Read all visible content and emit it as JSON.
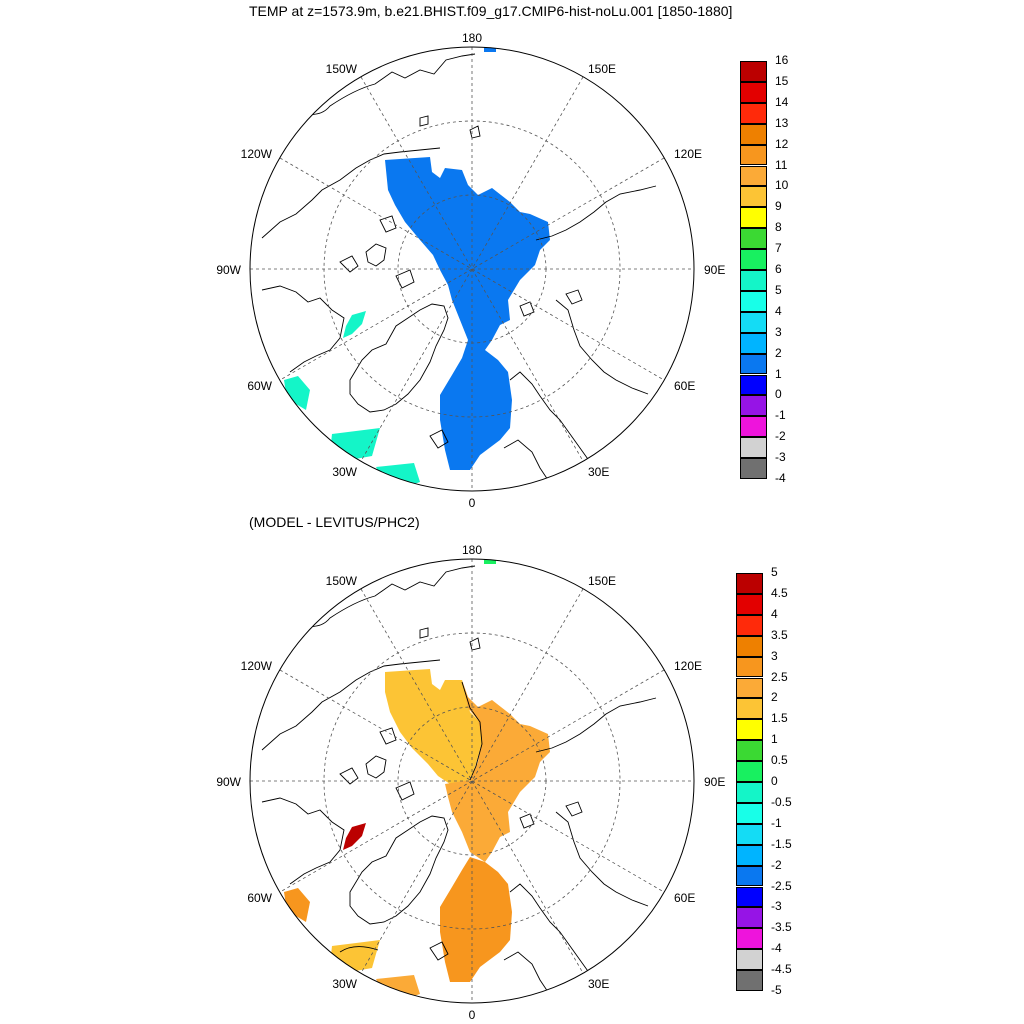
{
  "figure": {
    "title": "TEMP at z=1573.9m, b.e21.BHIST.f09_g17.CMIP6-hist-noLu.001 [1850-1880]",
    "difference_title": "(MODEL - LEVITUS/PHC2)"
  },
  "longitude_labels": {
    "lon_180": "180",
    "lon_150w": "150W",
    "lon_150e": "150E",
    "lon_120w": "120W",
    "lon_120e": "120E",
    "lon_90w": "90W",
    "lon_90e": "90E",
    "lon_60w": "60W",
    "lon_60e": "60E",
    "lon_30w": "30W",
    "lon_30e": "30E",
    "lon_0": "0"
  },
  "colorbar_top": {
    "levels": [
      "16",
      "15",
      "14",
      "13",
      "12",
      "11",
      "10",
      "9",
      "8",
      "7",
      "6",
      "5",
      "4",
      "3",
      "2",
      "1",
      "0",
      "-1",
      "-2",
      "-3",
      "-4"
    ],
    "colors": [
      "#bb0000",
      "#e30000",
      "#ff2a0a",
      "#ee8000",
      "#f7961e",
      "#fbaa37",
      "#fcc435",
      "#ffff00",
      "#3bd933",
      "#18f060",
      "#14f5c8",
      "#18ffe8",
      "#14dcf5",
      "#00b4ff",
      "#0a78f0",
      "#0000ff",
      "#9614e6",
      "#ee14dc",
      "#d2d2d2",
      "#707070"
    ]
  },
  "colorbar_bottom": {
    "levels": [
      "5",
      "4.5",
      "4",
      "3.5",
      "3",
      "2.5",
      "2",
      "1.5",
      "1",
      "0.5",
      "0",
      "-0.5",
      "-1",
      "-1.5",
      "-2",
      "-2.5",
      "-3",
      "-3.5",
      "-4",
      "-4.5",
      "-5"
    ],
    "colors": [
      "#bb0000",
      "#e30000",
      "#ff2a0a",
      "#ee8000",
      "#f7961e",
      "#fbaa37",
      "#fcc435",
      "#ffff00",
      "#3bd933",
      "#18f060",
      "#14f5c8",
      "#18ffe8",
      "#14dcf5",
      "#00b4ff",
      "#0a78f0",
      "#0000ff",
      "#9614e6",
      "#ee14dc",
      "#d2d2d2",
      "#707070"
    ]
  },
  "field_colors": {
    "top_main": "#0a78f0",
    "top_cyan": "#14f5c8",
    "bottom_yellow": "#fcc435",
    "bottom_orange": "#fbaa37",
    "bottom_dark_orange": "#f7961e",
    "bottom_red": "#bb0000",
    "bottom_green": "#18f060"
  }
}
